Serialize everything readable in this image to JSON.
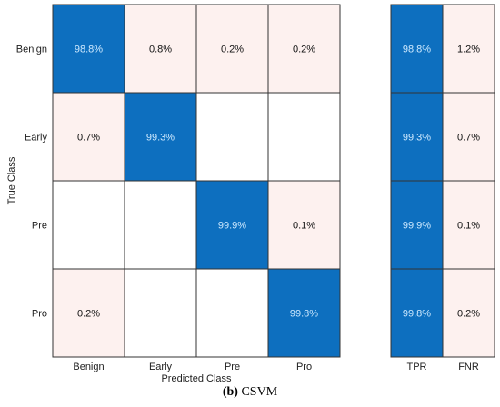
{
  "chart_data": {
    "type": "heatmap",
    "row_labels": [
      "Benign",
      "Early",
      "Pre",
      "Pro"
    ],
    "col_labels": [
      "Benign",
      "Early",
      "Pre",
      "Pro"
    ],
    "values": [
      [
        "98.8%",
        "0.8%",
        "0.2%",
        "0.2%"
      ],
      [
        "0.7%",
        "99.3%",
        "",
        ""
      ],
      [
        "",
        "",
        "99.9%",
        "0.1%"
      ],
      [
        "0.2%",
        "",
        "",
        "99.8%"
      ]
    ],
    "numeric_values": [
      [
        98.8,
        0.8,
        0.2,
        0.2
      ],
      [
        0.7,
        99.3,
        0,
        0
      ],
      [
        0,
        0,
        99.9,
        0.1
      ],
      [
        0.2,
        0,
        0,
        99.8
      ]
    ],
    "side_col_labels": [
      "TPR",
      "FNR"
    ],
    "side_values": [
      [
        "98.8%",
        "1.2%"
      ],
      [
        "99.3%",
        "0.7%"
      ],
      [
        "99.9%",
        "0.1%"
      ],
      [
        "99.8%",
        "0.2%"
      ]
    ],
    "xlabel": "Predicted Class",
    "ylabel": "True Class"
  },
  "caption": {
    "label": "(b)",
    "text": " CSVM"
  },
  "colors": {
    "diagonal": "#0d6fbf",
    "off_diagonal": "#fdf1ef",
    "empty": "#ffffff",
    "diagonal_text": "#cfeaff",
    "text": "#111111",
    "border": "#333333"
  }
}
